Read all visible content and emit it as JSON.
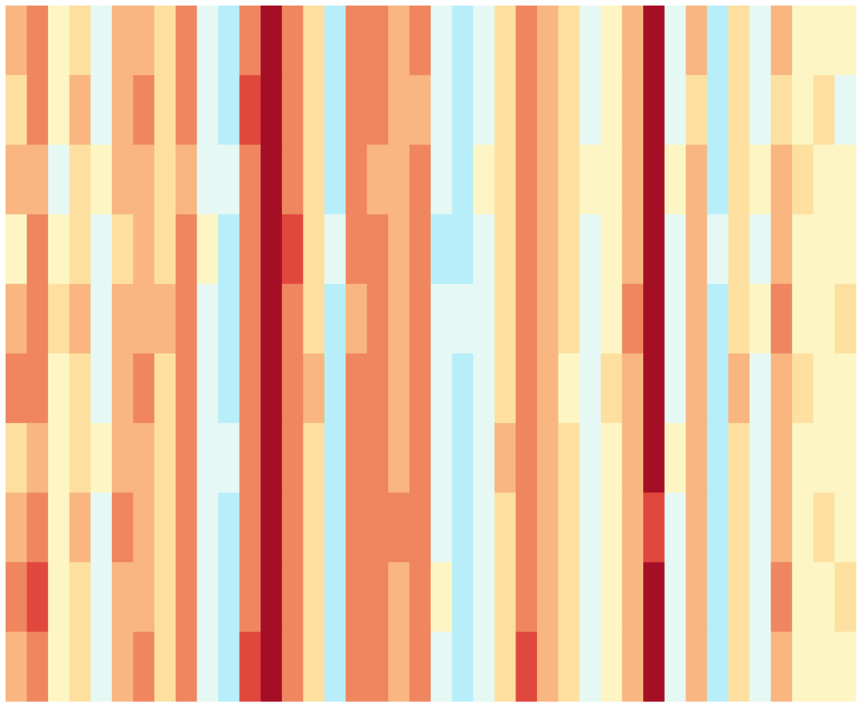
{
  "chart_data": {
    "type": "heatmap",
    "zlim": [
      0,
      10
    ],
    "colorscale": [
      "#2c5fe0",
      "#6fc4ec",
      "#b8eefa",
      "#e6f8f4",
      "#fdf6c4",
      "#fde0a0",
      "#f9b680",
      "#ef8660",
      "#e0483e",
      "#a50f26",
      "#7a0020"
    ],
    "values": [
      [
        6,
        7,
        4,
        5,
        3,
        6,
        6,
        5,
        7,
        3,
        2,
        7,
        9,
        7,
        5,
        2,
        7,
        7,
        6,
        7,
        3,
        2,
        3,
        5,
        7,
        6,
        5,
        3,
        4,
        6,
        9,
        3,
        6,
        2,
        5,
        3,
        6,
        4,
        4,
        4
      ],
      [
        5,
        7,
        4,
        6,
        3,
        6,
        7,
        5,
        7,
        3,
        2,
        8,
        9,
        7,
        5,
        2,
        7,
        7,
        6,
        6,
        3,
        2,
        3,
        5,
        7,
        6,
        5,
        3,
        4,
        6,
        9,
        3,
        5,
        2,
        5,
        3,
        5,
        4,
        5,
        3
      ],
      [
        6,
        6,
        3,
        5,
        4,
        6,
        6,
        5,
        6,
        3,
        3,
        7,
        9,
        7,
        5,
        2,
        7,
        6,
        6,
        7,
        3,
        2,
        4,
        5,
        7,
        6,
        5,
        4,
        4,
        6,
        9,
        4,
        6,
        2,
        5,
        4,
        6,
        5,
        4,
        4
      ],
      [
        4,
        7,
        4,
        5,
        3,
        5,
        6,
        5,
        7,
        4,
        2,
        7,
        9,
        8,
        5,
        3,
        7,
        7,
        6,
        7,
        2,
        2,
        3,
        5,
        7,
        6,
        5,
        3,
        4,
        6,
        9,
        3,
        6,
        3,
        5,
        3,
        6,
        4,
        4,
        4
      ],
      [
        6,
        7,
        5,
        6,
        3,
        6,
        6,
        6,
        7,
        3,
        2,
        7,
        9,
        7,
        5,
        2,
        6,
        7,
        6,
        7,
        3,
        3,
        3,
        5,
        7,
        6,
        5,
        3,
        4,
        7,
        9,
        3,
        6,
        2,
        5,
        4,
        7,
        4,
        4,
        5
      ],
      [
        7,
        7,
        4,
        5,
        3,
        6,
        7,
        5,
        7,
        3,
        2,
        7,
        9,
        7,
        6,
        2,
        7,
        7,
        6,
        7,
        3,
        2,
        3,
        5,
        7,
        6,
        4,
        3,
        5,
        6,
        9,
        3,
        6,
        2,
        6,
        3,
        6,
        5,
        4,
        4
      ],
      [
        5,
        6,
        4,
        5,
        4,
        6,
        6,
        5,
        7,
        3,
        3,
        7,
        9,
        7,
        5,
        2,
        7,
        7,
        6,
        7,
        3,
        2,
        3,
        6,
        7,
        6,
        5,
        3,
        4,
        6,
        9,
        4,
        6,
        2,
        5,
        3,
        6,
        4,
        4,
        4
      ],
      [
        6,
        7,
        4,
        6,
        3,
        7,
        6,
        5,
        7,
        3,
        2,
        7,
        9,
        7,
        5,
        2,
        7,
        7,
        7,
        7,
        3,
        2,
        3,
        5,
        7,
        6,
        5,
        3,
        4,
        6,
        8,
        3,
        6,
        2,
        5,
        3,
        6,
        4,
        5,
        4
      ],
      [
        7,
        8,
        4,
        5,
        3,
        6,
        6,
        5,
        7,
        3,
        2,
        7,
        9,
        7,
        5,
        2,
        7,
        7,
        6,
        7,
        4,
        2,
        3,
        5,
        7,
        6,
        5,
        3,
        4,
        6,
        9,
        3,
        6,
        2,
        5,
        3,
        7,
        4,
        4,
        5
      ],
      [
        6,
        7,
        4,
        5,
        3,
        6,
        7,
        5,
        7,
        3,
        2,
        8,
        9,
        7,
        5,
        2,
        7,
        7,
        6,
        7,
        3,
        2,
        3,
        5,
        8,
        6,
        5,
        3,
        4,
        6,
        9,
        3,
        6,
        2,
        5,
        3,
        6,
        4,
        4,
        4
      ]
    ]
  }
}
